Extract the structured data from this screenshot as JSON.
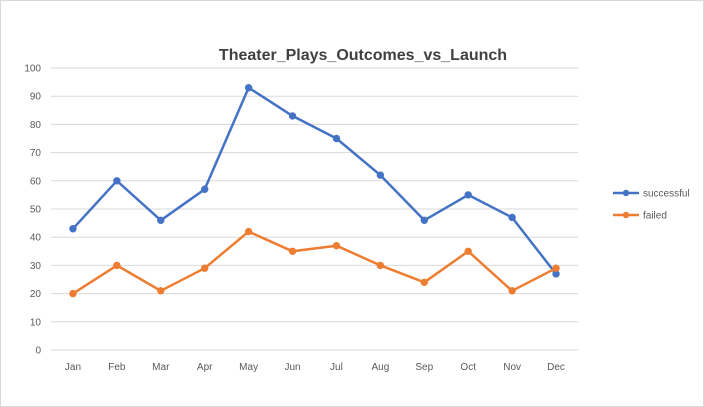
{
  "chart_data": {
    "type": "line",
    "title": "Theater_Plays_Outcomes_vs_Launch",
    "xlabel": "",
    "ylabel": "",
    "categories": [
      "Jan",
      "Feb",
      "Mar",
      "Apr",
      "May",
      "Jun",
      "Jul",
      "Aug",
      "Sep",
      "Oct",
      "Nov",
      "Dec"
    ],
    "series": [
      {
        "name": "successful",
        "color": "#4472c4",
        "values": [
          43,
          60,
          46,
          57,
          93,
          83,
          75,
          62,
          46,
          55,
          47,
          27
        ]
      },
      {
        "name": "failed",
        "color": "#ed7d31",
        "values": [
          20,
          30,
          21,
          29,
          42,
          35,
          37,
          30,
          24,
          35,
          21,
          29
        ]
      }
    ],
    "ylim": [
      0,
      100
    ],
    "yticks": [
      0,
      10,
      20,
      30,
      40,
      50,
      60,
      70,
      80,
      90,
      100
    ],
    "grid": true,
    "legend_position": "right"
  }
}
